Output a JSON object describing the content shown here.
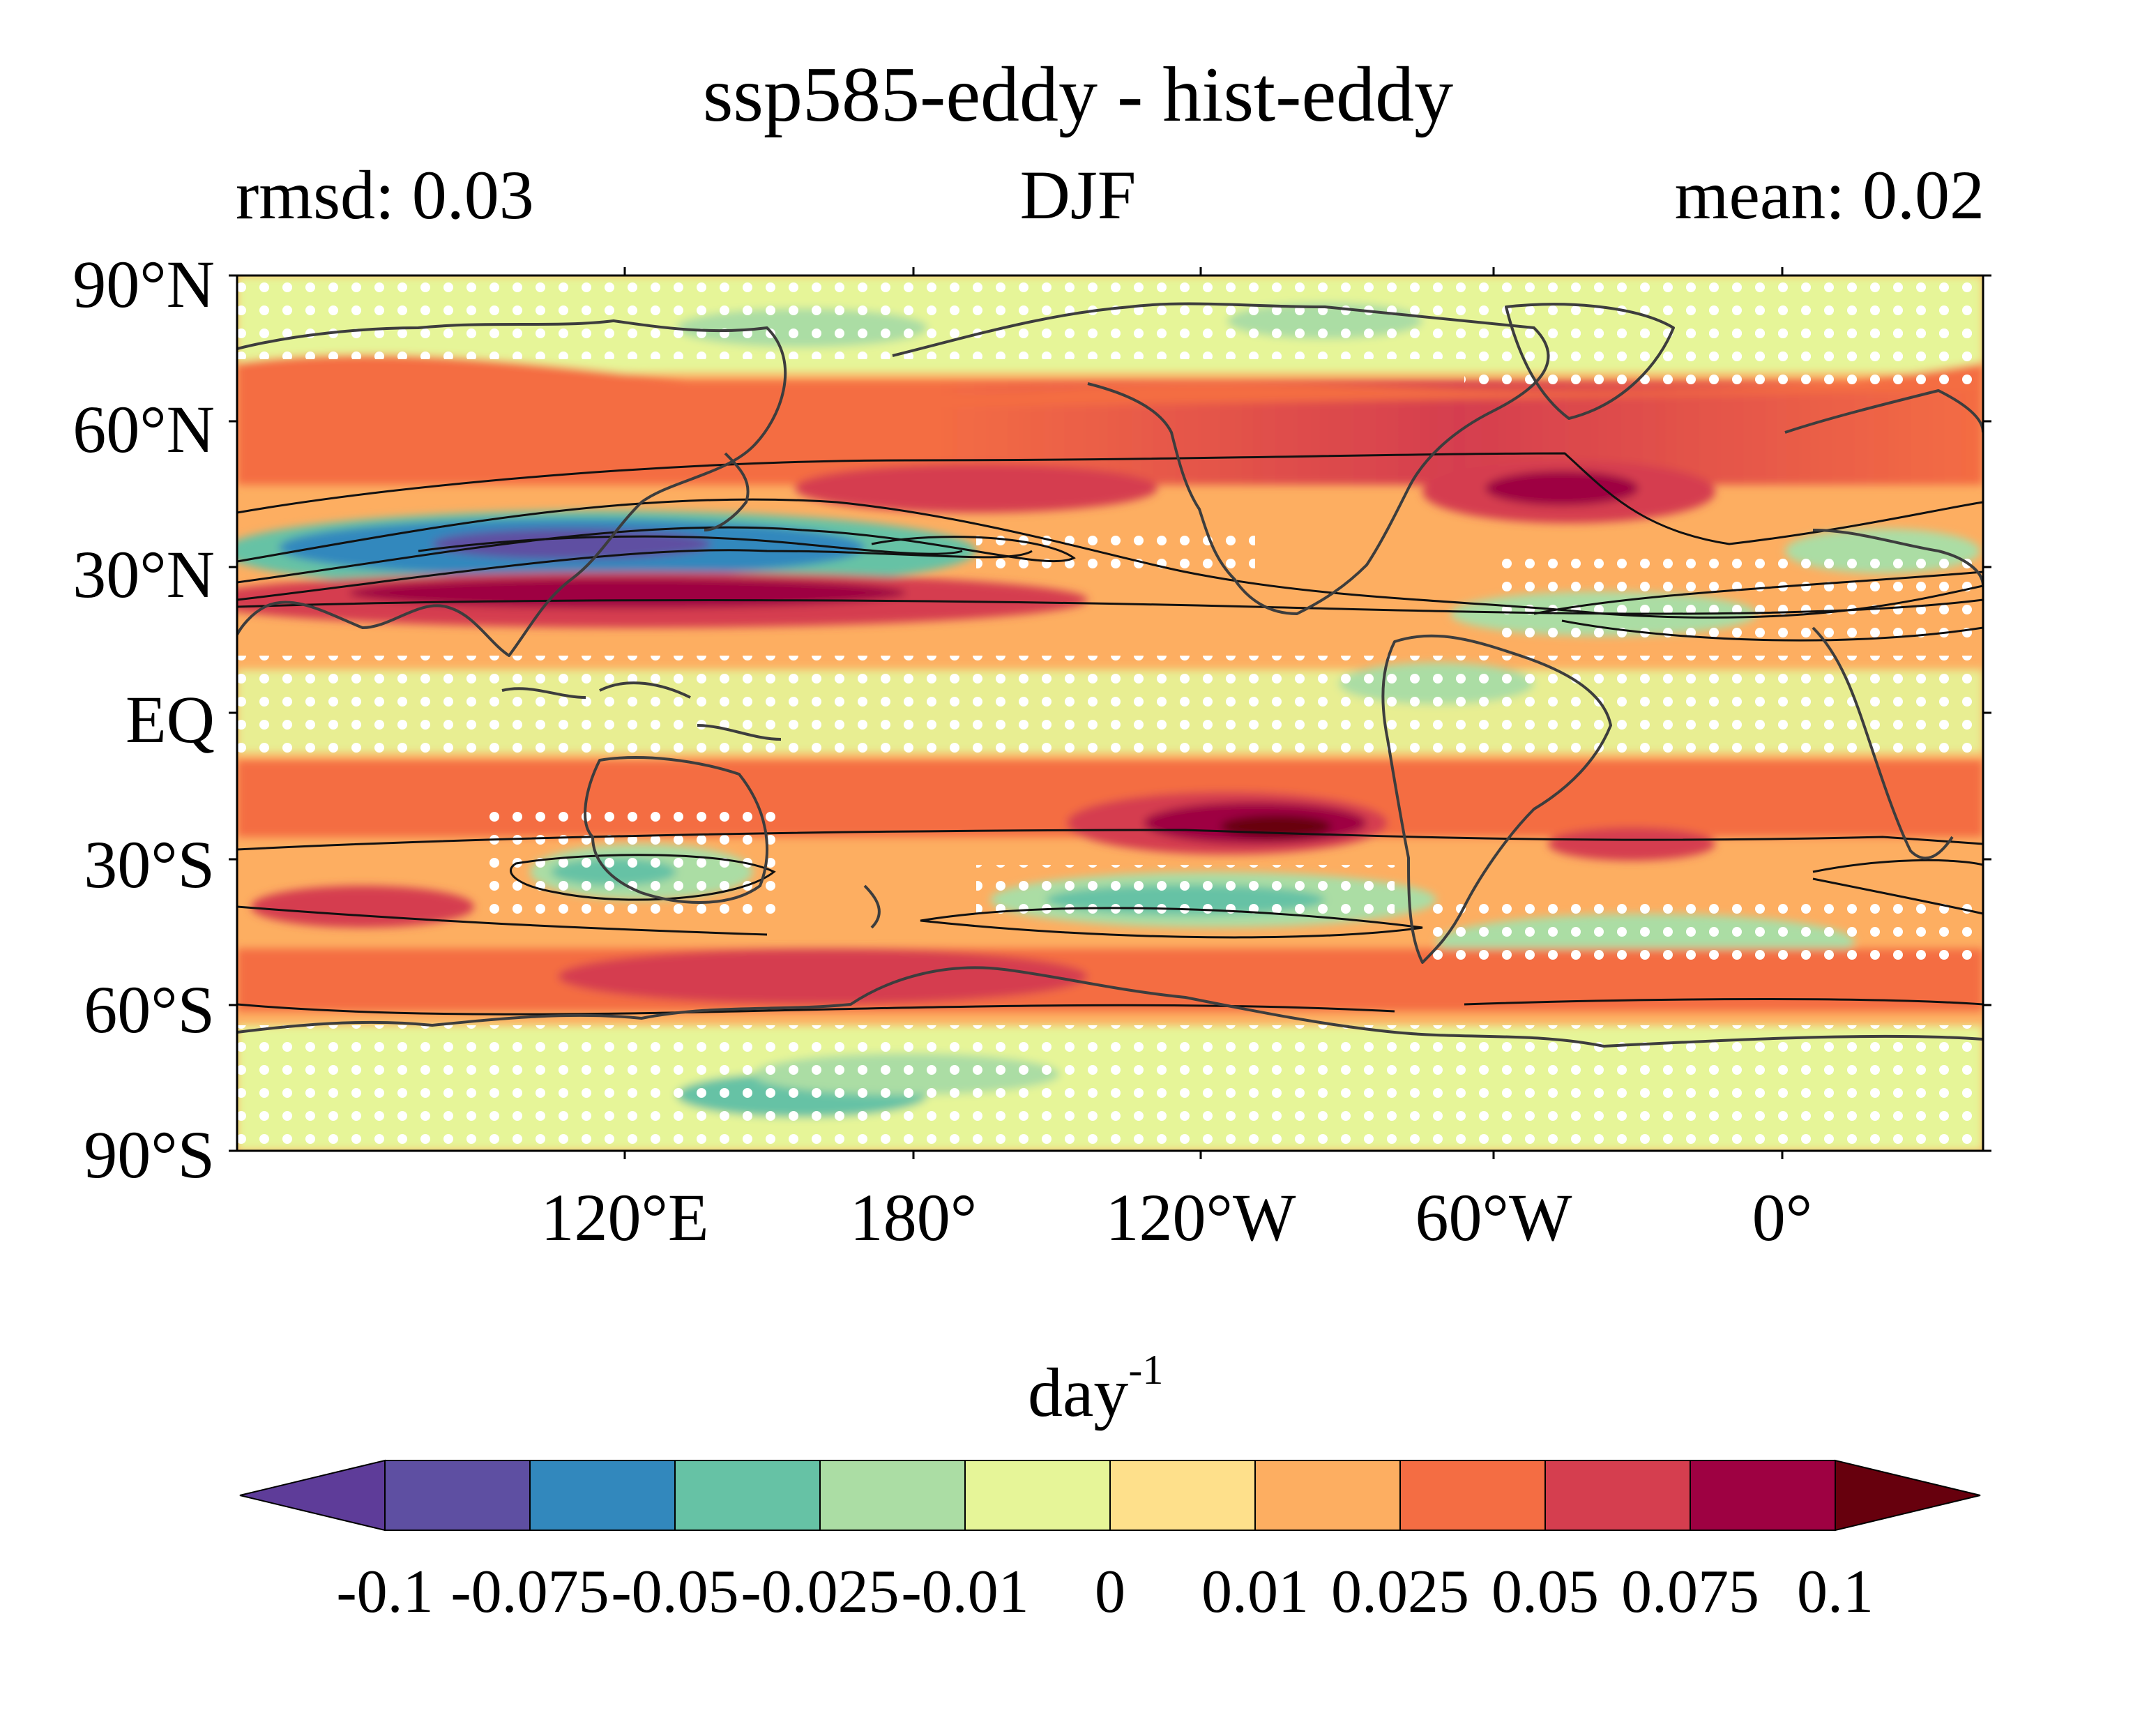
{
  "title": "ssp585-eddy - hist-eddy",
  "left_annotation": "rmsd: 0.03",
  "center_annotation": "DJF",
  "right_annotation": "mean: 0.02",
  "lat_labels": [
    "90°N",
    "60°N",
    "30°N",
    "EQ",
    "30°S",
    "60°S",
    "90°S"
  ],
  "lon_labels": [
    "120°E",
    "180°",
    "120°W",
    "60°W",
    "0°"
  ],
  "colorbar": {
    "unit_base": "day",
    "unit_exp": "-1",
    "ticks": [
      "-0.1",
      "-0.075",
      "-0.05",
      "-0.025",
      "-0.01",
      "0",
      "0.01",
      "0.025",
      "0.05",
      "0.075",
      "0.1"
    ],
    "colors": [
      "#5e3c99",
      "#5e4fa2",
      "#3288bd",
      "#66c2a5",
      "#abdda4",
      "#e6f598",
      "#fee08b",
      "#fdae61",
      "#f46d43",
      "#d53e4f",
      "#9e0142",
      "#67000d"
    ]
  },
  "map": {
    "projection": "PlateCarree",
    "central_longitude": "centered near 160°W",
    "stippling": "white dots mark non-significant regions",
    "contours": "black lines show historical climatology"
  }
}
